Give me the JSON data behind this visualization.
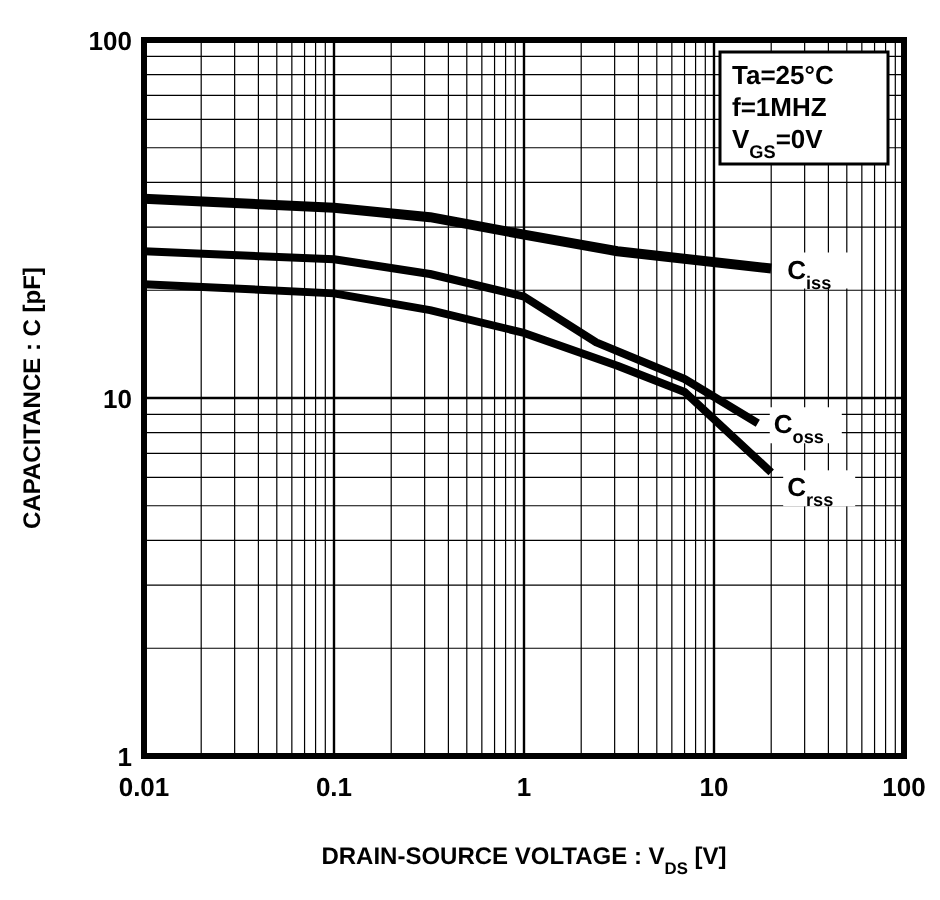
{
  "chart_data": {
    "type": "line",
    "xlabel": "DRAIN-SOURCE  VOLTAGE : V$_{DS}$ [V]",
    "ylabel": "CAPACITANCE : C [pF]",
    "log": "xy",
    "grid": true,
    "legend": false,
    "marker": "none",
    "line_style": "solid",
    "xlim": [
      0.01,
      100
    ],
    "ylim": [
      1,
      100
    ],
    "xticks": [
      0.01,
      {
        "value": 0.02,
        "label": null
      },
      {
        "value": 0.03,
        "label": null
      },
      {
        "value": 0.04,
        "label": null
      },
      {
        "value": 0.05,
        "label": null
      },
      {
        "value": 0.06,
        "label": null
      },
      {
        "value": 0.07,
        "label": null
      },
      {
        "value": 0.08,
        "label": null
      },
      {
        "value": 0.09,
        "label": null
      },
      0.1,
      {
        "value": 0.2,
        "label": null
      },
      {
        "value": 0.3,
        "label": null
      },
      {
        "value": 0.4,
        "label": null
      },
      {
        "value": 0.5,
        "label": null
      },
      {
        "value": 0.6,
        "label": null
      },
      {
        "value": 0.7,
        "label": null
      },
      {
        "value": 0.8,
        "label": null
      },
      {
        "value": 0.9,
        "label": null
      },
      1,
      {
        "value": 2,
        "label": null
      },
      {
        "value": 3,
        "label": null
      },
      {
        "value": 4,
        "label": null
      },
      {
        "value": 5,
        "label": null
      },
      {
        "value": 6,
        "label": null
      },
      {
        "value": 7,
        "label": null
      },
      {
        "value": 8,
        "label": null
      },
      {
        "value": 9,
        "label": null
      },
      10,
      {
        "value": 20,
        "label": null
      },
      {
        "value": 30,
        "label": null
      },
      {
        "value": 40,
        "label": null
      },
      {
        "value": 50,
        "label": null
      },
      {
        "value": 60,
        "label": null
      },
      {
        "value": 70,
        "label": null
      },
      {
        "value": 80,
        "label": null
      },
      {
        "value": 90,
        "label": null
      },
      100
    ],
    "yticks": [
      1,
      {
        "value": 2,
        "label": null
      },
      {
        "value": 3,
        "label": null
      },
      {
        "value": 4,
        "label": null
      },
      {
        "value": 5,
        "label": null
      },
      {
        "value": 6,
        "label": null
      },
      {
        "value": 7,
        "label": null
      },
      {
        "value": 8,
        "label": null
      },
      {
        "value": 9,
        "label": null
      },
      10,
      {
        "value": 20,
        "label": null
      },
      {
        "value": 30,
        "label": null
      },
      {
        "value": 40,
        "label": null
      },
      {
        "value": 50,
        "label": null
      },
      {
        "value": 60,
        "label": null
      },
      {
        "value": 70,
        "label": null
      },
      {
        "value": 80,
        "label": null
      },
      {
        "value": 90,
        "label": null
      },
      100
    ],
    "series": [
      {
        "name": "C$_{iss}$",
        "color": "#000000",
        "x": [
          0.01,
          0.1,
          0.32,
          1,
          3.1,
          20
        ],
        "values": [
          36,
          34,
          32,
          28.6,
          25.7,
          23
        ]
      },
      {
        "name": "C$_{oss}$",
        "color": "#000000",
        "x": [
          0.01,
          0.1,
          0.32,
          1,
          2.4,
          7,
          17
        ],
        "values": [
          25.7,
          24.4,
          22.2,
          19.2,
          14.3,
          11.3,
          8.5
        ]
      },
      {
        "name": "C$_{rss}$",
        "color": "#000000",
        "x": [
          0.01,
          0.1,
          0.32,
          1,
          3.1,
          7,
          20
        ],
        "values": [
          20.8,
          19.6,
          17.6,
          15.2,
          12.3,
          10.4,
          6.2
        ]
      }
    ],
    "annotations": [
      "Ta=25°C",
      "f=1MHZ",
      "V$_{GS}$=0V"
    ]
  }
}
